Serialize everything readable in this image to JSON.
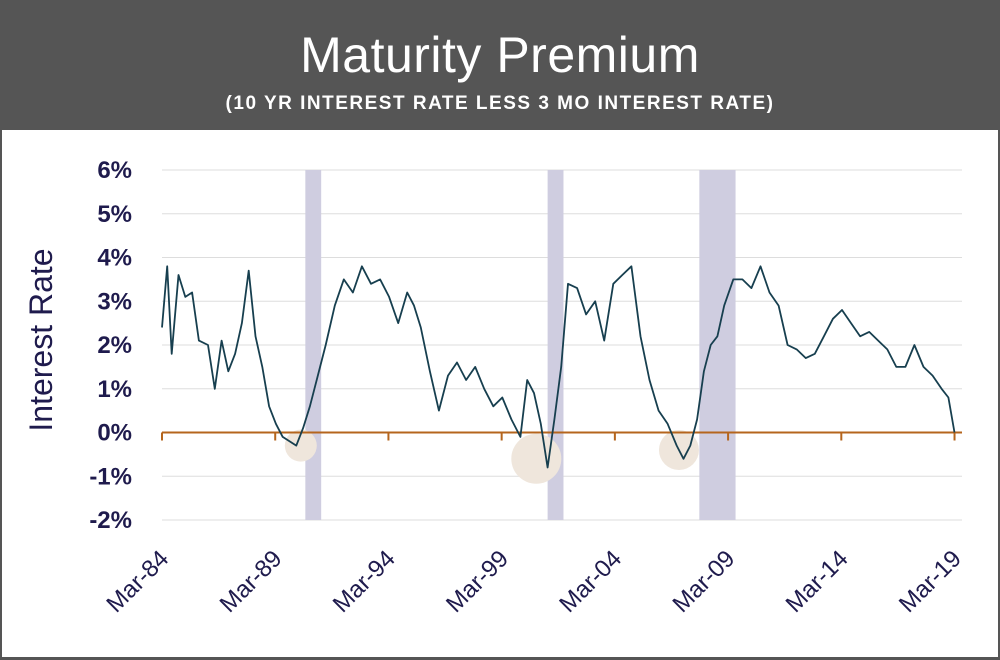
{
  "header": {
    "title": "Maturity Premium",
    "subtitle": "(10 YR INTEREST RATE LESS 3 MO INTEREST RATE)"
  },
  "colors": {
    "header_bg": "#555555",
    "line": "#173f4f",
    "zero_line": "#b5651d",
    "recession_band": "#cfcde0",
    "highlight_circle": "#efe6dc",
    "grid": "#dddddd",
    "text": "#1f1b4d"
  },
  "chart_data": {
    "type": "line",
    "title": "Maturity Premium",
    "subtitle": "(10 YR INTEREST RATE LESS 3 MO INTEREST RATE)",
    "xlabel": "",
    "ylabel": "Interest Rate",
    "ylim": [
      -2,
      6
    ],
    "xlim": [
      1984.17,
      2019.5
    ],
    "grid": true,
    "y_tick_values": [
      -2,
      -1,
      0,
      1,
      2,
      3,
      4,
      5,
      6
    ],
    "y_tick_labels": [
      "-2%",
      "-1%",
      "0%",
      "1%",
      "2%",
      "3%",
      "4%",
      "5%",
      "6%"
    ],
    "x_tick_values": [
      1984.17,
      1989.17,
      1994.17,
      1999.17,
      2004.17,
      2009.17,
      2014.17,
      2019.17
    ],
    "x_tick_labels": [
      "Mar-84",
      "Mar-89",
      "Mar-94",
      "Mar-99",
      "Mar-04",
      "Mar-09",
      "Mar-14",
      "Mar-19"
    ],
    "recession_bands": [
      [
        1990.5,
        1991.2
      ],
      [
        2001.2,
        2001.9
      ],
      [
        2007.9,
        2009.5
      ]
    ],
    "inversion_highlights": [
      {
        "x": 1990.3,
        "y": -0.3
      },
      {
        "x": 2000.7,
        "y": -0.6
      },
      {
        "x": 2007.0,
        "y": -0.4
      }
    ],
    "series": [
      {
        "x": [
          1984.17,
          1984.4,
          1984.6,
          1984.9,
          1985.2,
          1985.5,
          1985.8,
          1986.2,
          1986.5,
          1986.8,
          1987.1,
          1987.4,
          1987.7,
          1988.0,
          1988.3,
          1988.6,
          1988.9,
          1989.2,
          1989.5,
          1989.8,
          1990.1,
          1990.4,
          1990.7,
          1991.0,
          1991.4,
          1991.8,
          1992.2,
          1992.6,
          1993.0,
          1993.4,
          1993.8,
          1994.2,
          1994.6,
          1995.0,
          1995.3,
          1995.6,
          1996.0,
          1996.4,
          1996.8,
          1997.2,
          1997.6,
          1998.0,
          1998.4,
          1998.8,
          1999.2,
          1999.6,
          2000.0,
          2000.3,
          2000.6,
          2000.9,
          2001.2,
          2001.5,
          2001.8,
          2002.1,
          2002.5,
          2002.9,
          2003.3,
          2003.7,
          2004.1,
          2004.5,
          2004.9,
          2005.3,
          2005.7,
          2006.1,
          2006.5,
          2006.9,
          2007.2,
          2007.5,
          2007.8,
          2008.1,
          2008.4,
          2008.7,
          2009.0,
          2009.4,
          2009.8,
          2010.2,
          2010.6,
          2011.0,
          2011.4,
          2011.8,
          2012.2,
          2012.6,
          2013.0,
          2013.4,
          2013.8,
          2014.2,
          2014.6,
          2015.0,
          2015.4,
          2015.8,
          2016.2,
          2016.6,
          2017.0,
          2017.4,
          2017.8,
          2018.2,
          2018.6,
          2018.9,
          2019.17
        ],
        "values": [
          2.4,
          3.8,
          1.8,
          3.6,
          3.1,
          3.2,
          2.1,
          2.0,
          1.0,
          2.1,
          1.4,
          1.8,
          2.5,
          3.7,
          2.2,
          1.5,
          0.6,
          0.2,
          -0.1,
          -0.2,
          -0.3,
          0.1,
          0.6,
          1.2,
          2.0,
          2.9,
          3.5,
          3.2,
          3.8,
          3.4,
          3.5,
          3.1,
          2.5,
          3.2,
          2.9,
          2.4,
          1.4,
          0.5,
          1.3,
          1.6,
          1.2,
          1.5,
          1.0,
          0.6,
          0.8,
          0.3,
          -0.1,
          1.2,
          0.9,
          0.2,
          -0.8,
          0.3,
          1.5,
          3.4,
          3.3,
          2.7,
          3.0,
          2.1,
          3.4,
          3.6,
          3.8,
          2.2,
          1.2,
          0.5,
          0.2,
          -0.3,
          -0.6,
          -0.3,
          0.3,
          1.4,
          2.0,
          2.2,
          2.9,
          3.5,
          3.5,
          3.3,
          3.8,
          3.2,
          2.9,
          2.0,
          1.9,
          1.7,
          1.8,
          2.2,
          2.6,
          2.8,
          2.5,
          2.2,
          2.3,
          2.1,
          1.9,
          1.5,
          1.5,
          2.0,
          1.5,
          1.3,
          1.0,
          0.8,
          0.0
        ]
      }
    ]
  }
}
